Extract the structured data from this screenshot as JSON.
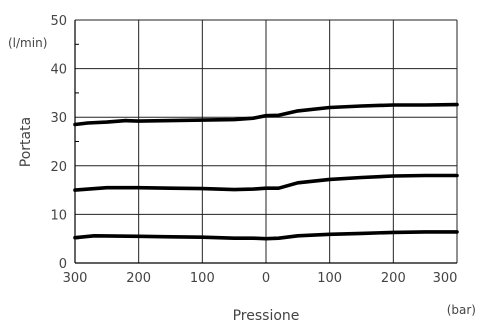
{
  "chart_data": {
    "type": "line",
    "title": "",
    "xlabel": "Pressione",
    "ylabel": "Portata",
    "x_unit": "(bar)",
    "y_unit": "(l/min)",
    "x_tick_labels": [
      "300",
      "200",
      "100",
      "0",
      "100",
      "200",
      "300"
    ],
    "y_ticks": [
      0,
      10,
      20,
      30,
      40,
      50
    ],
    "x_domain": [
      -300,
      300
    ],
    "ylim": [
      0,
      50
    ],
    "grid": true,
    "line_color": "#000000",
    "series": [
      {
        "x": [
          -300,
          -280,
          -250,
          -220,
          -200,
          -150,
          -100,
          -50,
          -20,
          0,
          20,
          50,
          100,
          150,
          200,
          250,
          300
        ],
        "y": [
          28.5,
          28.8,
          29.0,
          29.3,
          29.2,
          29.3,
          29.4,
          29.5,
          29.8,
          30.3,
          30.4,
          31.3,
          32.0,
          32.3,
          32.5,
          32.5,
          32.6
        ]
      },
      {
        "x": [
          -300,
          -250,
          -200,
          -150,
          -100,
          -50,
          -20,
          0,
          20,
          50,
          100,
          150,
          200,
          250,
          300
        ],
        "y": [
          15.0,
          15.5,
          15.5,
          15.4,
          15.3,
          15.1,
          15.2,
          15.4,
          15.4,
          16.5,
          17.2,
          17.6,
          17.9,
          18.0,
          18.0
        ]
      },
      {
        "x": [
          -300,
          -270,
          -200,
          -150,
          -100,
          -50,
          -20,
          0,
          20,
          50,
          100,
          150,
          200,
          250,
          300
        ],
        "y": [
          5.2,
          5.6,
          5.5,
          5.4,
          5.3,
          5.1,
          5.1,
          5.0,
          5.1,
          5.6,
          5.9,
          6.1,
          6.3,
          6.4,
          6.4
        ]
      }
    ]
  }
}
